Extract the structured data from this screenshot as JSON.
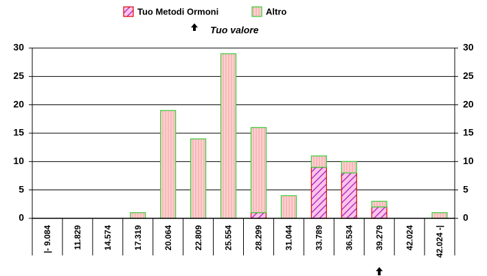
{
  "chart_data": {
    "type": "stacked_bar",
    "categories": [
      "|- 9.084",
      "11.829",
      "14.574",
      "17.319",
      "20.064",
      "22.809",
      "25.554",
      "28.299",
      "31.044",
      "33.789",
      "36.534",
      "39.279",
      "42.024",
      "42.024 -|"
    ],
    "series": [
      {
        "name": "Tuo Metodi Ormoni",
        "color": "#cc44cc",
        "values": [
          0,
          0,
          0,
          0,
          0,
          0,
          0,
          1,
          0,
          9,
          8,
          2,
          0,
          0
        ]
      },
      {
        "name": "Altro",
        "color": "#ffc4c4",
        "values": [
          0,
          0,
          0,
          1,
          19,
          14,
          29,
          15,
          4,
          2,
          2,
          1,
          0,
          1
        ]
      }
    ],
    "ylim": [
      0,
      30
    ],
    "yticks": [
      0,
      5,
      10,
      15,
      20,
      25,
      30
    ],
    "y2lim": [
      0,
      30
    ],
    "y2ticks": [
      0,
      5,
      10,
      15,
      20,
      25,
      30
    ],
    "grid": true,
    "annotation": {
      "text": "Tuo valore",
      "category": "39.279"
    }
  }
}
